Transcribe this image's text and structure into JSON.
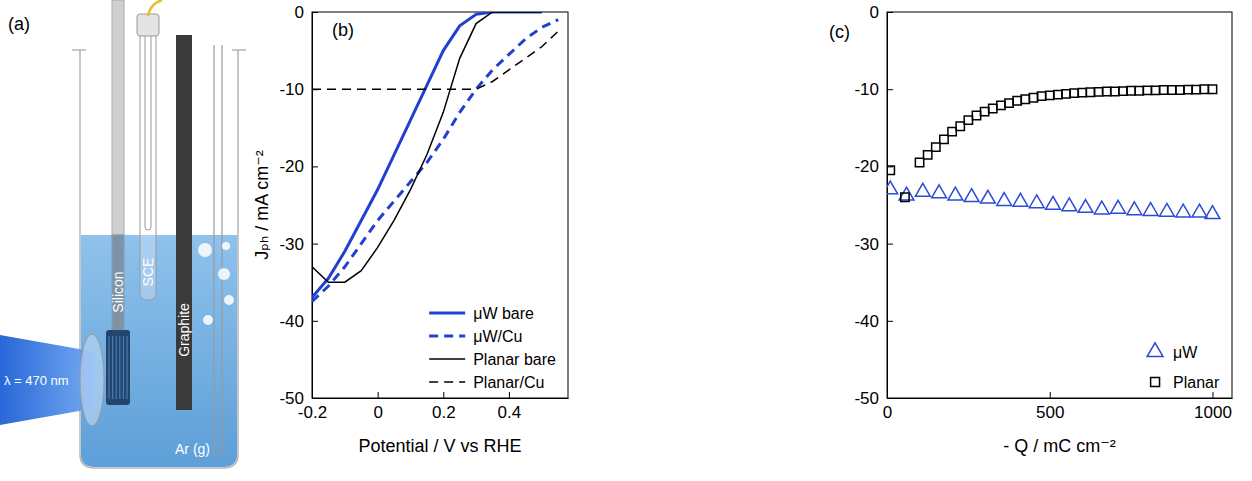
{
  "diagram": {
    "label": "(a)",
    "electrodes": [
      "Silicon",
      "SCE",
      "Graphite"
    ],
    "gas": "Ar (g)",
    "light": "λ = 470 nm"
  },
  "chart_data": [
    {
      "type": "line",
      "annotations": [
        "(b)"
      ],
      "x_label": "Potential / V vs RHE",
      "y_label": "Jₚₕ / mA cm⁻²",
      "xlim": [
        -0.2,
        0.58
      ],
      "ylim": [
        -50,
        0
      ],
      "xticks": [
        -0.2,
        0,
        0.2,
        0.4
      ],
      "yticks": [
        -50,
        -40,
        -30,
        -20,
        -10,
        0
      ],
      "legend": "lower right",
      "x": [
        -0.2,
        -0.15,
        -0.1,
        -0.05,
        0,
        0.05,
        0.1,
        0.15,
        0.2,
        0.25,
        0.3,
        0.35,
        0.4,
        0.45,
        0.5,
        0.55
      ],
      "series": [
        {
          "name": "μW bare",
          "color": "#2240d0",
          "line_style": "solid",
          "values": [
            -37,
            -34.5,
            -31,
            -27,
            -23,
            -18.5,
            -14,
            -9.5,
            -5,
            -1.8,
            -0.3,
            0,
            0,
            0,
            0,
            null
          ]
        },
        {
          "name": "μW/Cu",
          "color": "#2240d0",
          "line_style": "dashed",
          "values": [
            -37.5,
            -35.5,
            -33,
            -30,
            -27,
            -24.5,
            -22,
            -19.5,
            -16.5,
            -13,
            -10,
            -7.5,
            -5.5,
            -3.5,
            -2,
            -1
          ]
        },
        {
          "name": "Planar bare",
          "color": "#000000",
          "line_style": "solid",
          "values": [
            -33,
            -35,
            -35,
            -33.5,
            -30.5,
            -27,
            -23,
            -18.5,
            -13,
            -6,
            -1.5,
            0,
            0,
            0,
            0,
            null
          ]
        },
        {
          "name": "Planar/Cu",
          "color": "#000000",
          "line_style": "dashed",
          "values": [
            -10,
            -10,
            -10,
            -10,
            -10,
            -10,
            -10,
            -10,
            -10,
            -10,
            -10,
            -9,
            -7.5,
            -6,
            -4.5,
            -2.5
          ]
        }
      ]
    },
    {
      "type": "scatter",
      "annotations": [
        "(c)"
      ],
      "x_label": "- Q / mC cm⁻²",
      "xlim": [
        0,
        1060
      ],
      "ylim": [
        -50,
        0
      ],
      "xticks": [
        0,
        500,
        1000
      ],
      "yticks": [
        -50,
        -40,
        -30,
        -20,
        -10,
        0
      ],
      "legend": "lower right",
      "series": [
        {
          "name": "μW",
          "color": "#2a4bd7",
          "marker": "triangle",
          "x": [
            10,
            60,
            110,
            160,
            210,
            260,
            310,
            360,
            410,
            460,
            510,
            560,
            610,
            660,
            710,
            760,
            810,
            860,
            910,
            960,
            1000
          ],
          "values": [
            -23,
            -23.8,
            -23.3,
            -23.5,
            -23.8,
            -24,
            -24.2,
            -24.5,
            -24.6,
            -24.8,
            -25,
            -25.2,
            -25.4,
            -25.6,
            -25.5,
            -25.7,
            -25.8,
            -25.9,
            -26,
            -26,
            -26.2
          ]
        },
        {
          "name": "Planar",
          "color": "#000000",
          "marker": "square",
          "x": [
            10,
            55,
            100,
            125,
            150,
            175,
            200,
            225,
            250,
            275,
            300,
            325,
            350,
            375,
            400,
            425,
            450,
            475,
            500,
            525,
            550,
            575,
            600,
            625,
            650,
            675,
            700,
            725,
            750,
            775,
            800,
            825,
            850,
            875,
            900,
            925,
            950,
            975,
            1000
          ],
          "values": [
            -20.5,
            -24,
            -19.5,
            -18.5,
            -17.5,
            -16.5,
            -15.5,
            -14.8,
            -14,
            -13.4,
            -12.9,
            -12.5,
            -12.1,
            -11.8,
            -11.5,
            -11.3,
            -11.1,
            -10.9,
            -10.8,
            -10.7,
            -10.6,
            -10.5,
            -10.45,
            -10.4,
            -10.35,
            -10.3,
            -10.3,
            -10.25,
            -10.2,
            -10.2,
            -10.15,
            -10.15,
            -10.1,
            -10.1,
            -10.1,
            -10.05,
            -10.05,
            -10,
            -10
          ]
        }
      ]
    }
  ]
}
